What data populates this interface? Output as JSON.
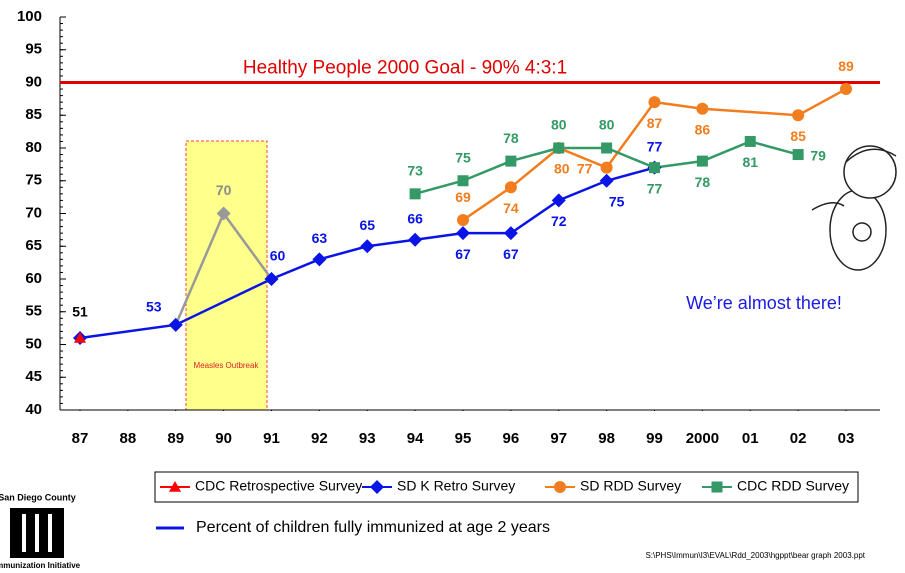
{
  "chart_data": {
    "type": "line",
    "xlim": [
      1986.5,
      2003.5
    ],
    "xticks": [
      {
        "value": 1987,
        "label": "87"
      },
      {
        "value": 1988,
        "label": "88"
      },
      {
        "value": 1989,
        "label": "89"
      },
      {
        "value": 1990,
        "label": "90"
      },
      {
        "value": 1991,
        "label": "91"
      },
      {
        "value": 1992,
        "label": "92"
      },
      {
        "value": 1993,
        "label": "93"
      },
      {
        "value": 1994,
        "label": "94"
      },
      {
        "value": 1995,
        "label": "95"
      },
      {
        "value": 1996,
        "label": "96"
      },
      {
        "value": 1997,
        "label": "97"
      },
      {
        "value": 1998,
        "label": "98"
      },
      {
        "value": 1999,
        "label": "99"
      },
      2000,
      {
        "value": 2001,
        "label": "01"
      },
      {
        "value": 2002,
        "label": "02"
      },
      {
        "value": 2003,
        "label": "03"
      }
    ],
    "ylim": [
      40,
      100
    ],
    "yticks": [
      40,
      45,
      50,
      55,
      60,
      65,
      70,
      75,
      80,
      85,
      90,
      95,
      100
    ],
    "grid": false,
    "series": [
      {
        "name": "CDC Retrospective Survey",
        "color": "#ff0000",
        "marker": "triangle",
        "x": [
          1987
        ],
        "values": [
          51
        ]
      },
      {
        "name": "SD K Retro Survey",
        "color": "#0a14e6",
        "marker": "diamond",
        "x": [
          1987,
          1989,
          1991,
          1992,
          1993,
          1994,
          1995,
          1996,
          1997,
          1998,
          1999
        ],
        "values": [
          51,
          53,
          60,
          63,
          65,
          66,
          67,
          67,
          72,
          75,
          77
        ]
      },
      {
        "color": "#999999",
        "marker": "diamond",
        "x": [
          1989,
          1990,
          1991
        ],
        "values": [
          53,
          70,
          60
        ]
      },
      {
        "name": "SD RDD Survey",
        "color": "#f27d1e",
        "marker": "circle",
        "x": [
          1995,
          1996,
          1997,
          1998,
          1999,
          2000,
          2002,
          2003
        ],
        "values": [
          69,
          74,
          80,
          77,
          87,
          86,
          85,
          89
        ]
      },
      {
        "name": "CDC RDD Survey",
        "color": "#339966",
        "marker": "square",
        "x": [
          1994,
          1995,
          1996,
          1997,
          1998,
          1999,
          2000,
          2001,
          2002
        ],
        "values": [
          73,
          75,
          78,
          80,
          80,
          77,
          78,
          81,
          79
        ]
      }
    ],
    "goal": {
      "value": 90,
      "label": "Healthy People 2000 Goal - 90% 4:3:1",
      "color": "#e00000"
    },
    "annotation": "Measles Outbreak",
    "callout": "We’re almost there!",
    "caption": "Percent of children fully immunized at age 2 years",
    "file_path": "S:\\PHS\\Immun\\I3\\EVAL\\Rdd_2003\\hgppt\\bear graph 2003.ppt",
    "logo": {
      "top": "San Diego County",
      "bottom": "Immunization Initiative"
    }
  }
}
